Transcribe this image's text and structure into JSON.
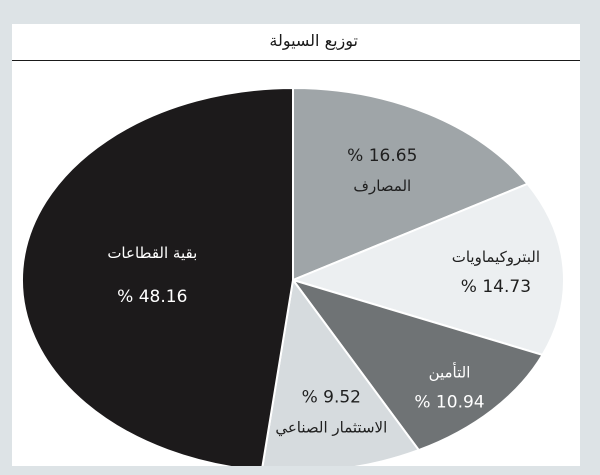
{
  "chart_data": {
    "type": "pie",
    "title": "توزيع السيولة",
    "slices": [
      {
        "label": "المصارف",
        "value": "16.65",
        "display": "% 16.65",
        "fill": "#9fa5a8",
        "text": "#1f1f1f"
      },
      {
        "label": "البتروكيماويات",
        "value": "14.73",
        "display": "% 14.73",
        "fill": "#eceff1",
        "text": "#1f1f1f"
      },
      {
        "label": "التأمين",
        "value": "10.94",
        "display": "% 10.94",
        "fill": "#6f7375",
        "text": "#ffffff"
      },
      {
        "label": "الاستثمار الصناعي",
        "value": "9.52",
        "display": "% 9.52",
        "fill": "#d6dbde",
        "text": "#1f1f1f"
      },
      {
        "label": "بقية القطاعات",
        "value": "48.16",
        "display": "% 48.16",
        "fill": "#1c1a1b",
        "text": "#ffffff"
      }
    ]
  }
}
